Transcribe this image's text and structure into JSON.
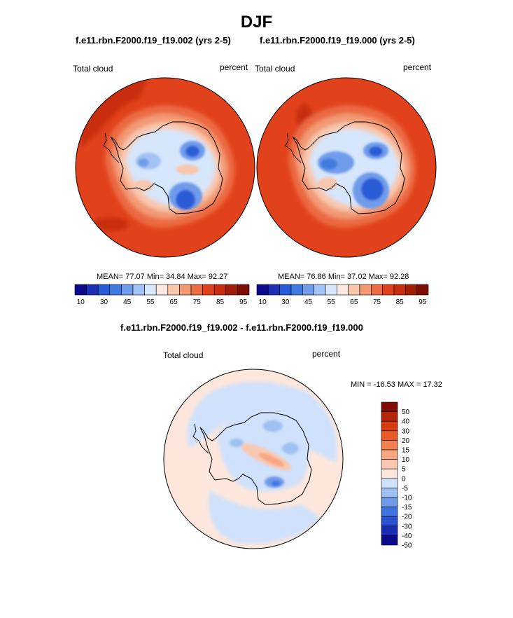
{
  "page": {
    "title": "DJF"
  },
  "colors": {
    "abs_palette": [
      "#0a0a8c",
      "#1e2fb4",
      "#2a5bd6",
      "#3f7be0",
      "#6f9bea",
      "#a3c3f4",
      "#d6e6fb",
      "#fbe9df",
      "#f8c7ad",
      "#f29a74",
      "#eb6b43",
      "#e1421c",
      "#c82e0e",
      "#a01e08",
      "#7a0d05"
    ],
    "diff_palette": [
      "#0a0a8c",
      "#1a2db2",
      "#2a52d0",
      "#3e74e0",
      "#6f9ae8",
      "#9fc0f2",
      "#cfe1fb",
      "#fde7dc",
      "#fac8b0",
      "#f7a681",
      "#f1814f",
      "#e85c27",
      "#d53c10",
      "#b42608",
      "#7f0d05"
    ],
    "frame": "#000000",
    "coast": "#000000"
  },
  "chart_data": [
    {
      "type": "heatmap",
      "projection": "polar-stereographic-south",
      "subtitle": "f.e11.rbn.F2000.f19_f19.002 (yrs 2-5)",
      "left_label": "Total cloud",
      "right_label": "percent",
      "variable": "Total cloud",
      "units": "percent",
      "stats_text": "MEAN=  77.07  Min=  34.84  Max=  92.27",
      "mean": 77.07,
      "min": 34.84,
      "max": 92.27,
      "colorbar_levels": [
        10,
        15,
        20,
        25,
        30,
        35,
        40,
        45,
        50,
        55,
        60,
        65,
        70,
        75,
        80,
        85,
        90,
        95
      ],
      "colorbar_tick_labels": [
        "10",
        "30",
        "45",
        "55",
        "65",
        "75",
        "85",
        "95"
      ],
      "colorbar_orientation": "horizontal"
    },
    {
      "type": "heatmap",
      "projection": "polar-stereographic-south",
      "subtitle": "f.e11.rbn.F2000.f19_f19.000 (yrs 2-5)",
      "left_label": "Total cloud",
      "right_label": "percent",
      "variable": "Total cloud",
      "units": "percent",
      "stats_text": "MEAN=  76.86  Min=  37.02  Max=  92.28",
      "mean": 76.86,
      "min": 37.02,
      "max": 92.28,
      "colorbar_levels": [
        10,
        15,
        20,
        25,
        30,
        35,
        40,
        45,
        50,
        55,
        60,
        65,
        70,
        75,
        80,
        85,
        90,
        95
      ],
      "colorbar_tick_labels": [
        "10",
        "30",
        "45",
        "55",
        "65",
        "75",
        "85",
        "95"
      ],
      "colorbar_orientation": "horizontal"
    },
    {
      "type": "heatmap",
      "projection": "polar-stereographic-south",
      "subtitle": "f.e11.rbn.F2000.f19_f19.002 - f.e11.rbn.F2000.f19_f19.000",
      "left_label": "Total cloud",
      "right_label": "percent",
      "variable": "Total cloud difference",
      "units": "percent",
      "stats_text": "MIN = -16.53 MAX =  17.32",
      "min": -16.53,
      "max": 17.32,
      "colorbar_levels": [
        50,
        40,
        30,
        20,
        15,
        10,
        5,
        0,
        -5,
        -10,
        -15,
        -20,
        -30,
        -40,
        -50
      ],
      "colorbar_tick_labels": [
        "50",
        "40",
        "30",
        "20",
        "15",
        "10",
        "5",
        "0",
        "-5",
        "-10",
        "-15",
        "-20",
        "-30",
        "-40",
        "-50"
      ],
      "colorbar_orientation": "vertical"
    }
  ]
}
